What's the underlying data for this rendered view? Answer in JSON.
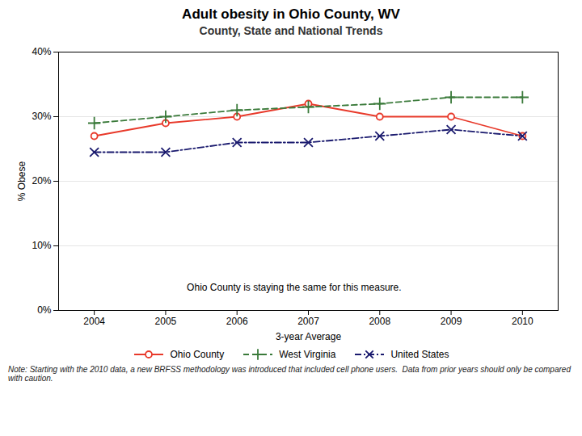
{
  "chart_data": {
    "type": "line",
    "title": "Adult obesity in Ohio County, WV",
    "subtitle": "County, State and National Trends",
    "xlabel": "3-year Average",
    "ylabel": "% Obese",
    "x": [
      2004,
      2005,
      2006,
      2007,
      2008,
      2009,
      2010
    ],
    "series": [
      {
        "name": "Ohio County",
        "color": "#e8392a",
        "marker": "circle",
        "line_style": "solid",
        "values": [
          27.0,
          29.0,
          30.0,
          32.0,
          30.0,
          30.0,
          27.0
        ]
      },
      {
        "name": "West Virginia",
        "color": "#3a7a3a",
        "marker": "plus",
        "line_style": "dashed",
        "values": [
          29.0,
          30.0,
          31.0,
          31.5,
          32.0,
          33.0,
          33.0
        ]
      },
      {
        "name": "United States",
        "color": "#1a1a6e",
        "marker": "x",
        "line_style": "dashdot",
        "values": [
          24.5,
          24.5,
          26.0,
          26.0,
          27.0,
          28.0,
          27.0
        ]
      }
    ],
    "xlim": [
      2003.5,
      2010.5
    ],
    "xticks": [
      2004,
      2005,
      2006,
      2007,
      2008,
      2009,
      2010
    ],
    "ylim": [
      0,
      40
    ],
    "yticks": [
      {
        "value": 0,
        "label": "0%"
      },
      {
        "value": 10,
        "label": "10%"
      },
      {
        "value": 20,
        "label": "20%"
      },
      {
        "value": 30,
        "label": "30%"
      },
      {
        "value": 40,
        "label": "40%"
      }
    ],
    "grid": true,
    "legend": "bottom",
    "annotations": [
      {
        "text": "Ohio County is staying the same for this measure.",
        "x": 2006.8,
        "y": 3.5
      }
    ],
    "caption": "Note: Starting with the 2010 data, a new BRFSS methodology was introduced that included cell phone users.  Data from prior years should only be compared with caution."
  }
}
